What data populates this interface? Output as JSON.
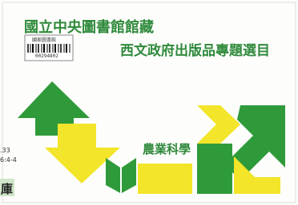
{
  "header": {
    "title": "國立中央圖書館館藏",
    "subtitle": "西文政府出版品專題選目"
  },
  "barcode": {
    "label": "國家圖書館",
    "number": "00294802"
  },
  "topic": "農業科學",
  "call_number": {
    "line1": ".33",
    "line2": "6:4-4",
    "stamp": "庫"
  }
}
